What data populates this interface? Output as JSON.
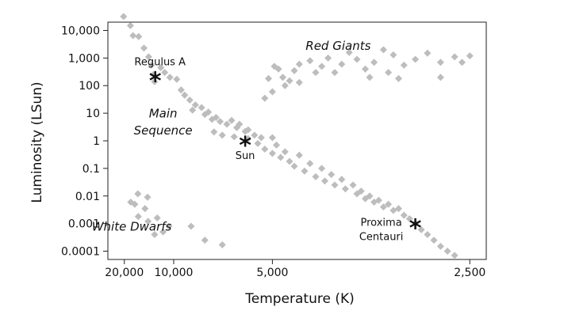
{
  "chart_data": {
    "type": "scatter",
    "title": "",
    "xlabel": "Temperature (K)",
    "ylabel": "Luminosity (LSun)",
    "x_scale": "reciprocal",
    "y_scale": "log",
    "xlim": [
      30000,
      2400
    ],
    "ylim": [
      5e-05,
      20000
    ],
    "grid": false,
    "x_ticks": [
      {
        "value": 20000,
        "label": "20,000"
      },
      {
        "value": 10000,
        "label": "10,000"
      },
      {
        "value": 5000,
        "label": "5,000"
      },
      {
        "value": 2500,
        "label": "2,500"
      }
    ],
    "y_ticks": [
      {
        "value": 10000,
        "label": "10,000"
      },
      {
        "value": 1000,
        "label": "1,000"
      },
      {
        "value": 100,
        "label": "100"
      },
      {
        "value": 10,
        "label": "10"
      },
      {
        "value": 1,
        "label": "1"
      },
      {
        "value": 0.1,
        "label": "0.1"
      },
      {
        "value": 0.01,
        "label": "0.01"
      },
      {
        "value": 0.001,
        "label": "0.001"
      },
      {
        "value": 0.0001,
        "label": "0.0001"
      }
    ],
    "point_color": "#bdbdbd",
    "series": [
      {
        "values": [
          [
            20300,
            32000
          ],
          [
            17800,
            15000
          ],
          [
            17000,
            6500
          ],
          [
            15500,
            6000
          ],
          [
            14300,
            2300
          ],
          [
            13400,
            1100
          ],
          [
            12900,
            550
          ],
          [
            12600,
            250
          ],
          [
            12400,
            140
          ],
          [
            11500,
            450
          ],
          [
            11000,
            300
          ],
          [
            10400,
            200
          ],
          [
            9700,
            170
          ],
          [
            9300,
            70
          ],
          [
            9000,
            45
          ],
          [
            8600,
            30
          ],
          [
            8200,
            20
          ],
          [
            7800,
            16
          ],
          [
            7400,
            11
          ],
          [
            7000,
            7
          ],
          [
            6800,
            5
          ],
          [
            6500,
            4
          ],
          [
            6100,
            3
          ],
          [
            5800,
            2.2
          ],
          [
            5500,
            1.6
          ],
          [
            5400,
            0.8
          ],
          [
            5200,
            0.5
          ],
          [
            5000,
            0.35
          ],
          [
            4800,
            0.25
          ],
          [
            4600,
            0.18
          ],
          [
            4500,
            0.12
          ],
          [
            4300,
            0.08
          ],
          [
            4100,
            0.05
          ],
          [
            3950,
            0.035
          ],
          [
            3800,
            0.025
          ],
          [
            3650,
            0.018
          ],
          [
            3500,
            0.012
          ],
          [
            3400,
            0.008
          ],
          [
            3300,
            0.006
          ],
          [
            3200,
            0.004
          ],
          [
            3100,
            0.003
          ],
          [
            3000,
            0.002
          ],
          [
            2950,
            0.0015
          ],
          [
            2900,
            0.001
          ],
          [
            2850,
            0.0006
          ],
          [
            2800,
            0.0004
          ],
          [
            2750,
            0.00025
          ],
          [
            2700,
            0.00015
          ],
          [
            2650,
            0.0001
          ],
          [
            2600,
            7e-05
          ],
          [
            8400,
            13
          ],
          [
            7600,
            9
          ],
          [
            7200,
            6
          ],
          [
            6300,
            5.5
          ],
          [
            6000,
            4
          ],
          [
            5700,
            2.5
          ],
          [
            5300,
            1.3
          ],
          [
            4900,
            0.7
          ],
          [
            4700,
            0.4
          ],
          [
            4400,
            0.3
          ],
          [
            4200,
            0.15
          ],
          [
            4000,
            0.1
          ],
          [
            3850,
            0.06
          ],
          [
            3700,
            0.04
          ],
          [
            3550,
            0.025
          ],
          [
            3450,
            0.015
          ],
          [
            3350,
            0.01
          ],
          [
            3250,
            0.007
          ],
          [
            3150,
            0.005
          ],
          [
            3050,
            0.0035
          ],
          [
            5000,
            1.3
          ],
          [
            5700,
            1.2
          ],
          [
            6200,
            1.4
          ],
          [
            6700,
            1.6
          ],
          [
            7100,
            2.1
          ]
        ]
      },
      {
        "values": [
          [
            5200,
            35
          ],
          [
            5100,
            180
          ],
          [
            4950,
            500
          ],
          [
            4850,
            400
          ],
          [
            4750,
            200
          ],
          [
            4600,
            150
          ],
          [
            4500,
            350
          ],
          [
            4400,
            600
          ],
          [
            4200,
            800
          ],
          [
            4100,
            300
          ],
          [
            4000,
            500
          ],
          [
            3900,
            1000
          ],
          [
            3800,
            300
          ],
          [
            3700,
            600
          ],
          [
            3600,
            1600
          ],
          [
            3500,
            900
          ],
          [
            3400,
            400
          ],
          [
            3300,
            700
          ],
          [
            3200,
            2000
          ],
          [
            3100,
            1300
          ],
          [
            3000,
            550
          ],
          [
            2900,
            900
          ],
          [
            2800,
            1500
          ],
          [
            2700,
            700
          ],
          [
            2600,
            1100
          ],
          [
            2500,
            1200
          ],
          [
            2700,
            200
          ],
          [
            3050,
            180
          ],
          [
            3350,
            200
          ],
          [
            4400,
            130
          ],
          [
            4700,
            100
          ],
          [
            5000,
            60
          ],
          [
            2550,
            700
          ],
          [
            3150,
            300
          ]
        ]
      },
      {
        "values": [
          [
            17700,
            0.006
          ],
          [
            16500,
            0.005
          ],
          [
            15700,
            0.012
          ],
          [
            15600,
            0.0018
          ],
          [
            14100,
            0.0035
          ],
          [
            13600,
            0.009
          ],
          [
            13500,
            0.0012
          ],
          [
            12000,
            0.0016
          ],
          [
            12400,
            0.0004
          ],
          [
            11200,
            0.0005
          ],
          [
            10500,
            0.0008
          ],
          [
            8500,
            0.0008
          ],
          [
            7600,
            0.00025
          ],
          [
            6700,
            0.00017
          ]
        ]
      }
    ],
    "region_labels": [
      {
        "text": "Red Giants",
        "x": 3750,
        "y": 2000
      },
      {
        "text": "Main",
        "x": 11200,
        "y": 7
      },
      {
        "text": "Sequence",
        "x": 11200,
        "y": 1.7
      },
      {
        "text": "White Dwarfs",
        "x": 17400,
        "y": 0.00055
      }
    ],
    "highlighted_stars": [
      {
        "name": "Regulus A",
        "x": 12300,
        "y": 220,
        "label": [
          "Regulus A"
        ]
      },
      {
        "name": "Sun",
        "x": 5800,
        "y": 1,
        "label": [
          "Sun"
        ]
      },
      {
        "name": "Proxima Centauri",
        "x": 2900,
        "y": 0.001,
        "label": [
          "Proxima",
          "Centauri"
        ]
      }
    ]
  }
}
